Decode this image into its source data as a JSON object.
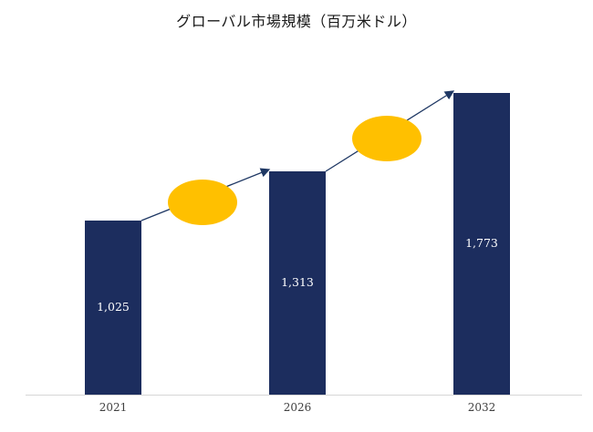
{
  "chart_data": {
    "type": "bar",
    "title": "グローバル市場規模（百万米ドル）",
    "categories": [
      "2021",
      "2026",
      "2032"
    ],
    "values": [
      1025,
      1313,
      1773
    ],
    "value_labels": [
      "1,025",
      "1,313",
      "1,773"
    ],
    "xlabel": "",
    "ylabel": "",
    "ylim": [
      0,
      2000
    ],
    "grid": false,
    "legend": "none",
    "bar_color": "#1c2d5e",
    "arrow_color": "#1f3864",
    "ellipse_color": "#ffc000",
    "annotations": [
      {
        "name": "growth-arrow-2021-2026",
        "text": ""
      },
      {
        "name": "growth-arrow-2026-2032",
        "text": ""
      }
    ]
  }
}
